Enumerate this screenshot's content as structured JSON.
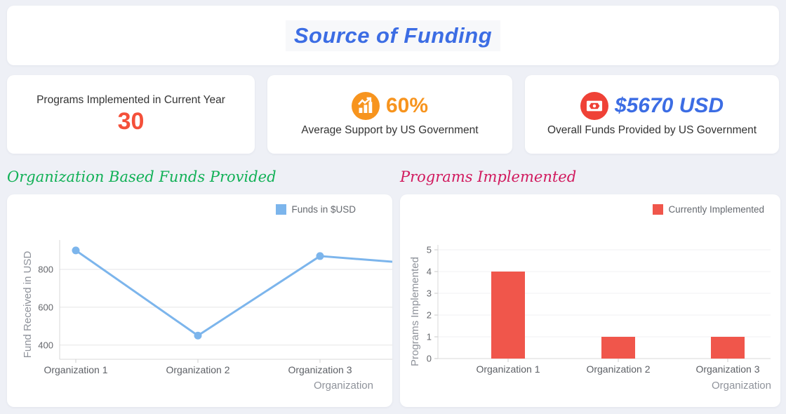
{
  "page": {
    "background_color": "#eef0f6"
  },
  "header": {
    "title": "Source of Funding",
    "title_color": "#3c6de4"
  },
  "stats": [
    {
      "label": "Programs Implemented in Current Year",
      "value": "30",
      "value_color": "#f4503a"
    },
    {
      "icon": "growth-chart-icon",
      "icon_bg_color": "#f7941e",
      "value": "60%",
      "value_color": "#f7941e",
      "label": "Average Support by US Government"
    },
    {
      "icon": "banknote-icon",
      "icon_bg_color": "#ef4136",
      "value": "$5670 USD",
      "value_color": "#3c6de4",
      "label": "Overall Funds Provided by US Government"
    }
  ],
  "chart_data": [
    {
      "type": "line",
      "title": "Organization Based Funds Provided",
      "title_color": "#12b157",
      "categories": [
        "Organization 1",
        "Organization 2",
        "Organization 3"
      ],
      "series": [
        {
          "name": "Funds in $USD",
          "values": [
            900,
            450,
            870
          ],
          "color": "#7cb5ec"
        }
      ],
      "clipped_extension": {
        "visible": true,
        "value_at_right_edge": 840
      },
      "xlabel": "Organization",
      "ylabel": "Fund Received in USD",
      "yticks": [
        400,
        600,
        800
      ],
      "ylim": [
        325,
        955
      ],
      "grid": true,
      "legend_position": "top-right"
    },
    {
      "type": "bar",
      "title": "Programs Implemented",
      "title_color": "#d11a5e",
      "categories": [
        "Organization 1",
        "Organization 2",
        "Organization 3"
      ],
      "series": [
        {
          "name": "Currently Implemented",
          "values": [
            4,
            1,
            1
          ],
          "color": "#f0564b"
        }
      ],
      "xlabel": "Organization",
      "ylabel": "Programs Implemented",
      "yticks": [
        0,
        1,
        2,
        3,
        4,
        5
      ],
      "ylim": [
        0,
        5
      ],
      "grid": true,
      "legend_position": "top-right"
    }
  ]
}
